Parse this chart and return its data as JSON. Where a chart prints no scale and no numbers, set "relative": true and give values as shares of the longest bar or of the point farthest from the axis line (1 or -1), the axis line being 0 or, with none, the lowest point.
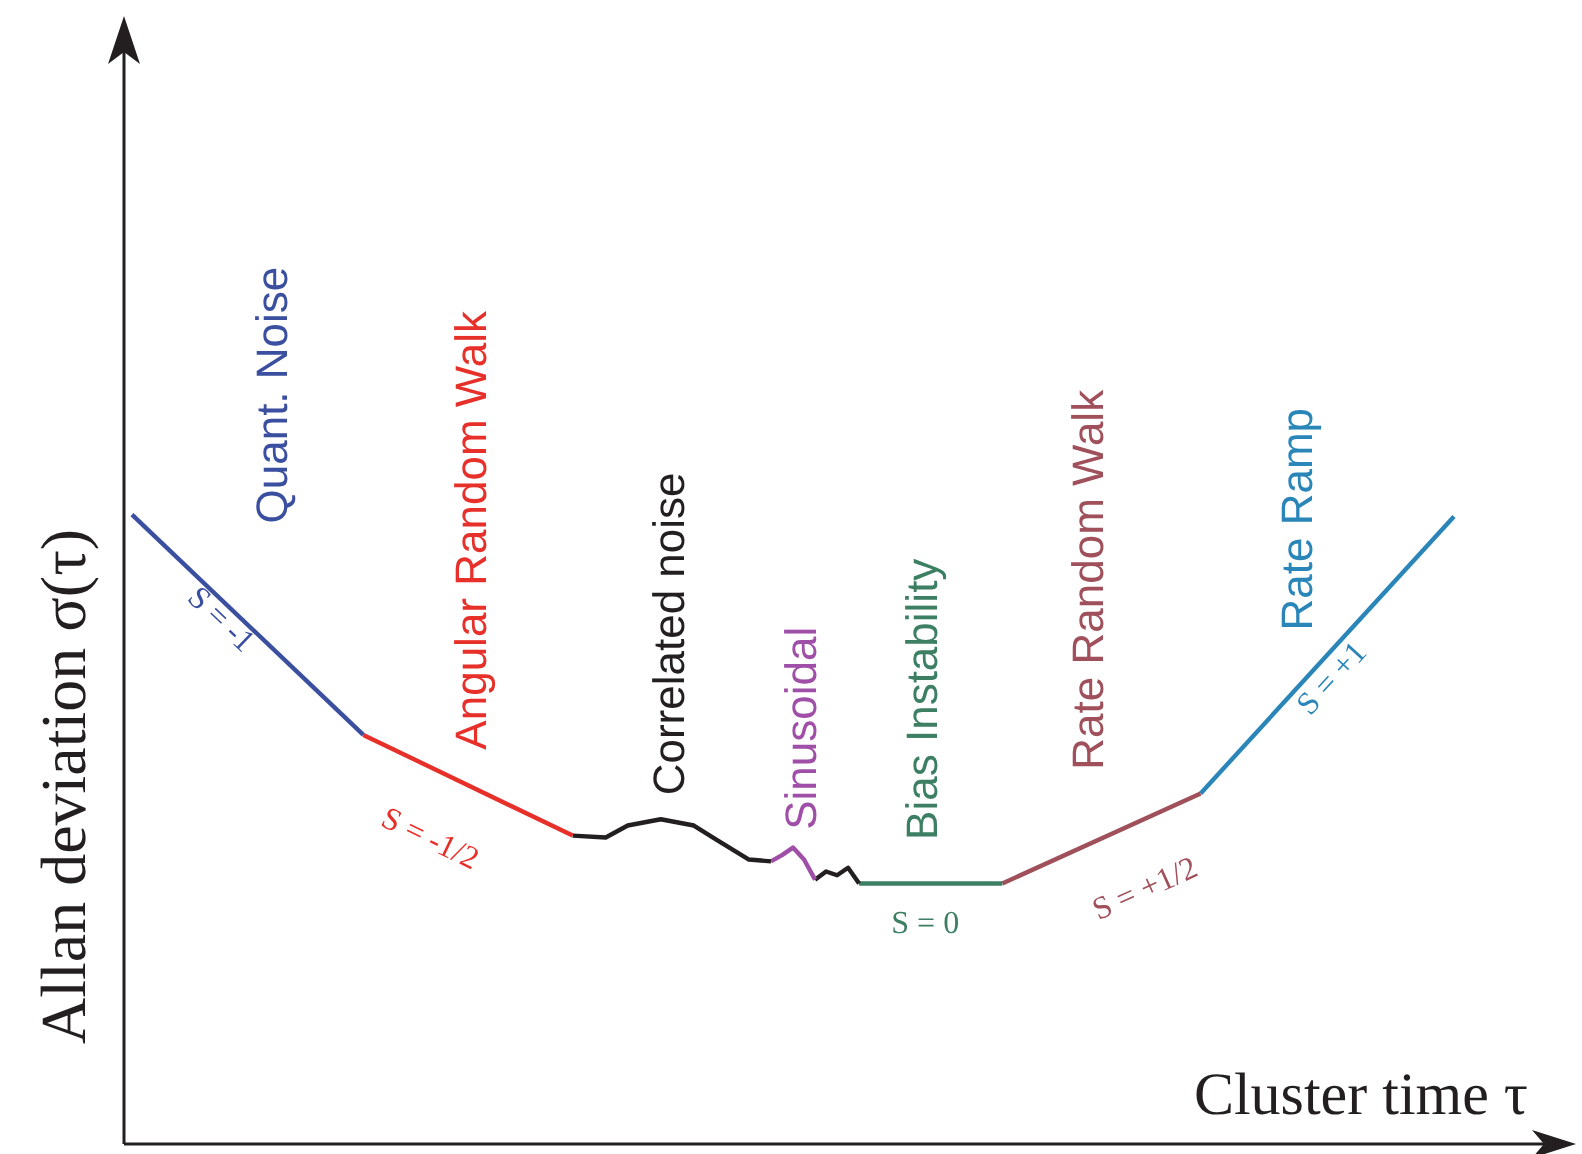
{
  "chart_data": {
    "type": "line",
    "relative": true,
    "xlabel": "Cluster time τ",
    "ylabel": "Allan deviation σ(τ)",
    "categories": [
      null,
      null,
      null,
      null,
      null,
      null,
      null,
      null,
      null,
      null,
      null,
      null,
      null,
      null,
      null,
      null,
      null,
      null,
      null,
      null,
      null,
      null,
      null,
      null,
      null,
      null,
      null,
      null,
      null,
      null,
      null,
      null,
      null,
      null,
      null,
      null,
      null,
      null,
      null,
      null,
      null,
      null,
      null,
      null,
      null,
      null,
      null,
      null,
      null,
      null,
      null,
      null,
      null,
      null,
      null,
      null,
      null,
      null,
      null,
      null,
      null,
      null,
      null,
      null,
      null,
      null,
      null,
      null,
      null,
      null,
      null,
      null,
      null,
      null,
      null,
      null,
      null,
      null,
      null,
      null,
      null,
      null,
      null,
      null,
      null,
      null,
      null,
      null,
      null,
      null,
      null,
      null,
      null,
      null,
      null,
      null,
      null,
      null,
      null,
      null,
      null,
      null,
      null,
      null,
      null,
      null,
      null,
      null,
      null,
      null,
      null,
      null,
      null,
      null,
      null,
      null,
      null,
      null,
      null,
      null,
      null
    ],
    "series": [
      {
        "color": "#3b4fa0",
        "values": [
          1.0,
          null,
          null,
          null,
          null,
          null,
          null,
          null,
          null,
          null,
          null,
          null,
          null,
          null,
          null,
          null,
          null,
          null,
          null,
          null,
          null,
          0.65,
          null,
          null,
          null,
          null,
          null,
          null,
          null,
          null,
          null,
          null,
          null,
          null,
          null,
          null,
          null,
          null,
          null,
          null,
          null,
          null,
          null,
          null,
          null,
          null,
          null,
          null,
          null,
          null,
          null,
          null,
          null,
          null,
          null,
          null,
          null,
          null,
          null,
          null,
          null,
          null,
          null,
          null,
          null,
          null,
          null,
          null,
          null,
          null,
          null,
          null,
          null,
          null,
          null,
          null,
          null,
          null,
          null,
          null,
          null,
          null,
          null,
          null,
          null,
          null,
          null,
          null,
          null,
          null,
          null,
          null,
          null,
          null,
          null,
          null,
          null,
          null,
          null,
          null,
          null,
          null,
          null,
          null,
          null,
          null,
          null,
          null,
          null,
          null,
          null,
          null,
          null,
          null,
          null,
          null,
          null,
          null,
          null,
          null,
          null
        ]
      },
      {
        "color": "#e8302a",
        "values": [
          null,
          null,
          null,
          null,
          null,
          null,
          null,
          null,
          null,
          null,
          null,
          null,
          null,
          null,
          null,
          null,
          null,
          null,
          null,
          null,
          null,
          0.65,
          null,
          null,
          null,
          null,
          null,
          null,
          null,
          null,
          null,
          null,
          null,
          null,
          null,
          null,
          null,
          null,
          null,
          null,
          0.49,
          null,
          null,
          null,
          null,
          null,
          null,
          null,
          null,
          null,
          null,
          null,
          null,
          null,
          null,
          null,
          null,
          null,
          null,
          null,
          null,
          null,
          null,
          null,
          null,
          null,
          null,
          null,
          null,
          null,
          null,
          null,
          null,
          null,
          null,
          null,
          null,
          null,
          null,
          null,
          null,
          null,
          null,
          null,
          null,
          null,
          null,
          null,
          null,
          null,
          null,
          null,
          null,
          null,
          null,
          null,
          null,
          null,
          null,
          null,
          null,
          null,
          null,
          null,
          null,
          null,
          null,
          null,
          null,
          null,
          null,
          null,
          null,
          null,
          null,
          null,
          null,
          null,
          null,
          null,
          null
        ]
      },
      {
        "color": "#231f20",
        "values": [
          null,
          null,
          null,
          null,
          null,
          null,
          null,
          null,
          null,
          null,
          null,
          null,
          null,
          null,
          null,
          null,
          null,
          null,
          null,
          null,
          null,
          null,
          null,
          null,
          null,
          null,
          null,
          null,
          null,
          null,
          null,
          null,
          null,
          null,
          null,
          null,
          null,
          null,
          null,
          null,
          0.49,
          null,
          null,
          0.487,
          null,
          0.506,
          null,
          null,
          0.516,
          null,
          null,
          0.506,
          null,
          0.484,
          null,
          null,
          0.452,
          null,
          0.449,
          null,
          null,
          null,
          null,
          null,
          null,
          null,
          null,
          null,
          null,
          null,
          null,
          null,
          null,
          null,
          null,
          null,
          null,
          null,
          null,
          null,
          null,
          null,
          null,
          null,
          null,
          null,
          null,
          null,
          null,
          null,
          null,
          null,
          null,
          null,
          null,
          null,
          null,
          null,
          null,
          null,
          null,
          null,
          null,
          null,
          null,
          null,
          null,
          null,
          null,
          null,
          null,
          null,
          null,
          null,
          null,
          null,
          null,
          null,
          null,
          null,
          null
        ]
      },
      {
        "color": "#a04fa8",
        "values": [
          null,
          null,
          null,
          null,
          null,
          null,
          null,
          null,
          null,
          null,
          null,
          null,
          null,
          null,
          null,
          null,
          null,
          null,
          null,
          null,
          null,
          null,
          null,
          null,
          null,
          null,
          null,
          null,
          null,
          null,
          null,
          null,
          null,
          null,
          null,
          null,
          null,
          null,
          null,
          null,
          null,
          null,
          null,
          null,
          null,
          null,
          null,
          null,
          null,
          null,
          null,
          null,
          null,
          null,
          null,
          null,
          null,
          null,
          0.449,
          0.459,
          0.471,
          0.452,
          0.42,
          null,
          null,
          null,
          null,
          null,
          null,
          null,
          null,
          null,
          null,
          null,
          null,
          null,
          null,
          null,
          null,
          null,
          null,
          null,
          null,
          null,
          null,
          null,
          null,
          null,
          null,
          null,
          null,
          null,
          null,
          null,
          null,
          null,
          null,
          null,
          null,
          null,
          null,
          null,
          null,
          null,
          null,
          null,
          null,
          null,
          null,
          null,
          null,
          null,
          null,
          null,
          null,
          null,
          null,
          null,
          null,
          null,
          null
        ]
      },
      {
        "color": "#231f20",
        "values": [
          null,
          null,
          null,
          null,
          null,
          null,
          null,
          null,
          null,
          null,
          null,
          null,
          null,
          null,
          null,
          null,
          null,
          null,
          null,
          null,
          null,
          null,
          null,
          null,
          null,
          null,
          null,
          null,
          null,
          null,
          null,
          null,
          null,
          null,
          null,
          null,
          null,
          null,
          null,
          null,
          null,
          null,
          null,
          null,
          null,
          null,
          null,
          null,
          null,
          null,
          null,
          null,
          null,
          null,
          null,
          null,
          null,
          null,
          null,
          null,
          null,
          null,
          0.42,
          0.433,
          0.427,
          0.439,
          0.414,
          null,
          null,
          null,
          null,
          null,
          null,
          null,
          null,
          null,
          null,
          null,
          null,
          null,
          null,
          null,
          null,
          null,
          null,
          null,
          null,
          null,
          null,
          null,
          null,
          null,
          null,
          null,
          null,
          null,
          null,
          null,
          null,
          null,
          null,
          null,
          null,
          null,
          null,
          null,
          null,
          null,
          null,
          null,
          null,
          null,
          null,
          null,
          null,
          null,
          null,
          null,
          null,
          null,
          null
        ]
      },
      {
        "color": "#3d7f63",
        "values": [
          null,
          null,
          null,
          null,
          null,
          null,
          null,
          null,
          null,
          null,
          null,
          null,
          null,
          null,
          null,
          null,
          null,
          null,
          null,
          null,
          null,
          null,
          null,
          null,
          null,
          null,
          null,
          null,
          null,
          null,
          null,
          null,
          null,
          null,
          null,
          null,
          null,
          null,
          null,
          null,
          null,
          null,
          null,
          null,
          null,
          null,
          null,
          null,
          null,
          null,
          null,
          null,
          null,
          null,
          null,
          null,
          null,
          null,
          null,
          null,
          null,
          null,
          null,
          null,
          null,
          null,
          0.414,
          null,
          null,
          null,
          null,
          null,
          null,
          null,
          null,
          null,
          null,
          null,
          null,
          0.414,
          null,
          null,
          null,
          null,
          null,
          null,
          null,
          null,
          null,
          null,
          null,
          null,
          null,
          null,
          null,
          null,
          null,
          null,
          null,
          null,
          null,
          null,
          null,
          null,
          null,
          null,
          null,
          null,
          null,
          null,
          null,
          null,
          null,
          null,
          null,
          null,
          null,
          null,
          null,
          null,
          null
        ]
      },
      {
        "color": "#a0505a",
        "values": [
          null,
          null,
          null,
          null,
          null,
          null,
          null,
          null,
          null,
          null,
          null,
          null,
          null,
          null,
          null,
          null,
          null,
          null,
          null,
          null,
          null,
          null,
          null,
          null,
          null,
          null,
          null,
          null,
          null,
          null,
          null,
          null,
          null,
          null,
          null,
          null,
          null,
          null,
          null,
          null,
          null,
          null,
          null,
          null,
          null,
          null,
          null,
          null,
          null,
          null,
          null,
          null,
          null,
          null,
          null,
          null,
          null,
          null,
          null,
          null,
          null,
          null,
          null,
          null,
          null,
          null,
          null,
          null,
          null,
          null,
          null,
          null,
          null,
          null,
          null,
          null,
          null,
          null,
          null,
          0.414,
          null,
          null,
          null,
          null,
          null,
          null,
          null,
          null,
          null,
          null,
          null,
          null,
          null,
          null,
          null,
          null,
          null,
          0.557,
          null,
          null,
          null,
          null,
          null,
          null,
          null,
          null,
          null,
          null,
          null,
          null,
          null,
          null,
          null,
          null,
          null,
          null,
          null,
          null,
          null,
          null,
          null
        ]
      },
      {
        "color": "#2a86b8",
        "values": [
          null,
          null,
          null,
          null,
          null,
          null,
          null,
          null,
          null,
          null,
          null,
          null,
          null,
          null,
          null,
          null,
          null,
          null,
          null,
          null,
          null,
          null,
          null,
          null,
          null,
          null,
          null,
          null,
          null,
          null,
          null,
          null,
          null,
          null,
          null,
          null,
          null,
          null,
          null,
          null,
          null,
          null,
          null,
          null,
          null,
          null,
          null,
          null,
          null,
          null,
          null,
          null,
          null,
          null,
          null,
          null,
          null,
          null,
          null,
          null,
          null,
          null,
          null,
          null,
          null,
          null,
          null,
          null,
          null,
          null,
          null,
          null,
          null,
          null,
          null,
          null,
          null,
          null,
          null,
          null,
          null,
          null,
          null,
          null,
          null,
          null,
          null,
          null,
          null,
          null,
          null,
          null,
          null,
          null,
          null,
          null,
          null,
          0.557,
          null,
          null,
          null,
          null,
          null,
          null,
          null,
          null,
          null,
          null,
          null,
          null,
          null,
          null,
          null,
          null,
          null,
          null,
          null,
          null,
          null,
          null,
          0.997
        ]
      }
    ],
    "annotations": [
      "Quant. Noise",
      "S = -1",
      "Angular Random Walk",
      "S = -1/2",
      "Correlated noise",
      "Sinusoidal",
      "Bias Instability",
      "S = 0",
      "Rate Random Walk",
      "S = +1/2",
      "Rate Ramp",
      "S = +1"
    ]
  }
}
